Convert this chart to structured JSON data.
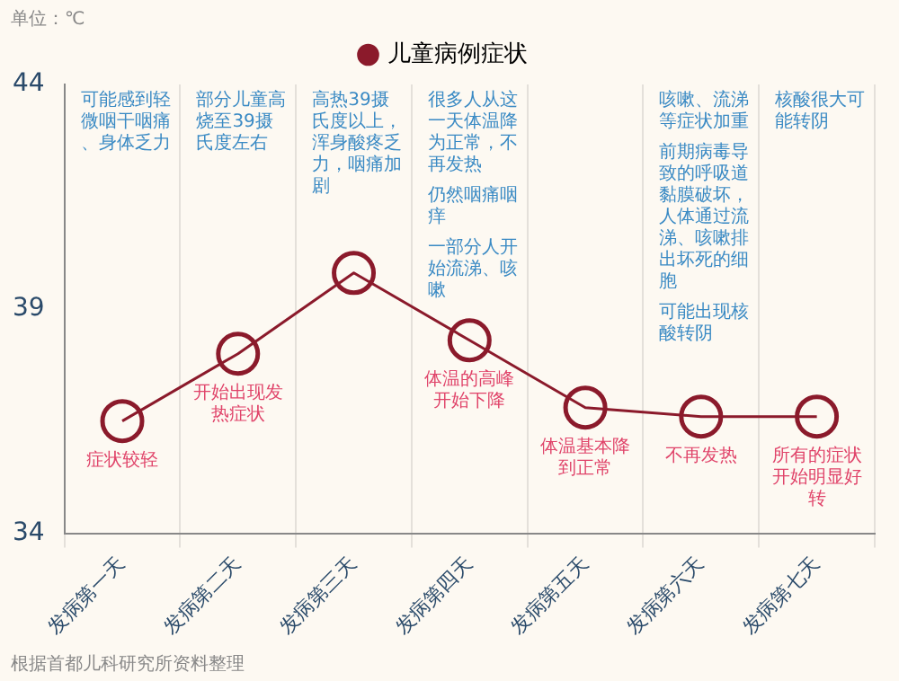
{
  "chart_data": {
    "type": "line",
    "ylabel": "单位：℃",
    "categories": [
      "发病第一天",
      "发病第二天",
      "发病第三天",
      "发病第四天",
      "发病第五天",
      "发病第六天",
      "发病第七天"
    ],
    "series": [
      {
        "name": "儿童病例症状",
        "color": "#8b1a2b",
        "values": [
          36.5,
          38.0,
          39.8,
          38.3,
          36.8,
          36.6,
          36.6
        ]
      }
    ],
    "ylim": [
      34,
      44
    ],
    "yticks": [
      34,
      39,
      44
    ],
    "grid": "x",
    "legend": "top",
    "marker": "circle",
    "line_style": "solid",
    "annotations": [
      "可能感到轻微咽干咽痛、身体乏力",
      "部分儿童高烧至39摄氏度左右",
      "高热39摄氏度以上，浑身酸疼乏力，咽痛加剧",
      "很多人从这一天体温降为正常，不再发热",
      "仍然咽痛咽痒",
      "一部分人开始流涕、咳嗽",
      "咳嗽、流涕等症状加重",
      "前期病毒导致的呼吸道黏膜破坏，人体通过流涕、咳嗽排出坏死的细胞",
      "可能出现核酸转阴",
      "核酸很大可能转阴",
      {
        "text": "症状较轻",
        "x": "发病第一天",
        "y": 36.5
      },
      {
        "text": "开始出现发热症状",
        "x": "发病第二天",
        "y": 38.0
      },
      {
        "text": "体温的高峰开始下降",
        "x": "发病第四天",
        "y": 38.3
      },
      {
        "text": "体温基本降到正常",
        "x": "发病第五天",
        "y": 36.8
      },
      {
        "text": "不再发热",
        "x": "发病第六天",
        "y": 36.6
      },
      {
        "text": "所有的症状开始明显好转",
        "x": "发病第七天",
        "y": 36.6
      },
      "根据首都儿科研究所资料整理"
    ]
  }
}
